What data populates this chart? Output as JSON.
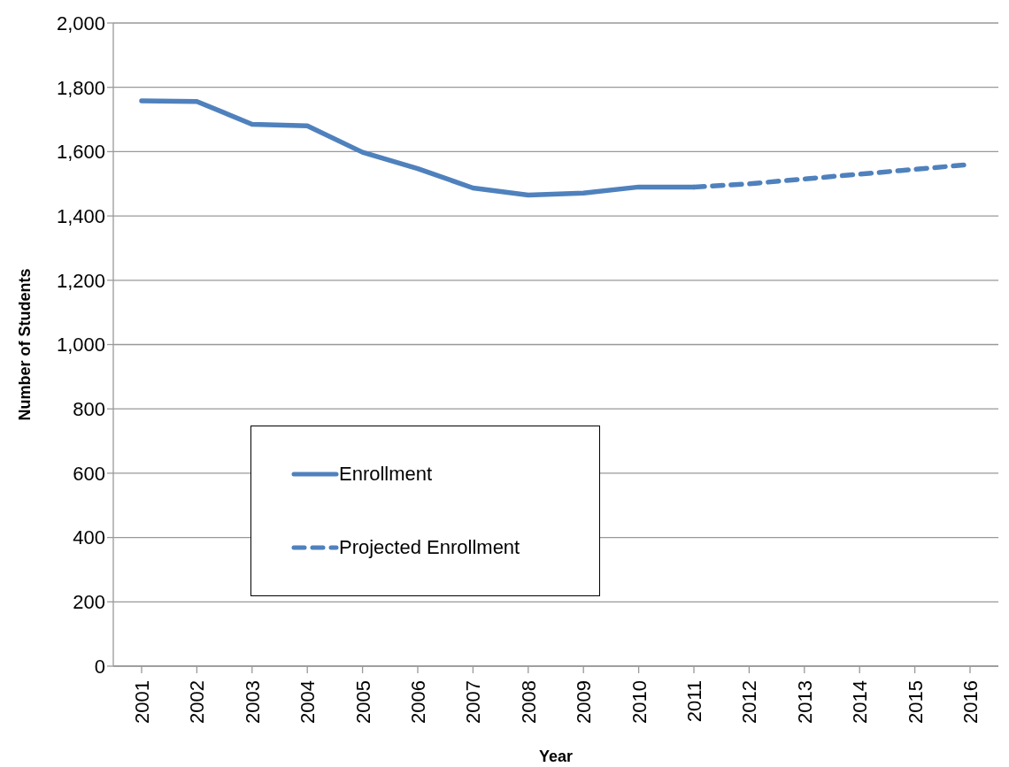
{
  "chart_data": {
    "type": "line",
    "xlabel": "Year",
    "ylabel": "Number of Students",
    "categories": [
      "2001",
      "2002",
      "2003",
      "2004",
      "2005",
      "2006",
      "2007",
      "2008",
      "2009",
      "2010",
      "2011",
      "2012",
      "2013",
      "2014",
      "2015",
      "2016"
    ],
    "series": [
      {
        "name": "Enrollment",
        "color": "#4f81bd",
        "line_style": "solid",
        "values": [
          1758,
          1756,
          1685,
          1680,
          1598,
          1547,
          1487,
          1465,
          1471,
          1490,
          1490,
          null,
          null,
          null,
          null,
          null
        ]
      },
      {
        "name": "Projected Enrollment",
        "color": "#4f81bd",
        "line_style": "dashed",
        "values": [
          null,
          null,
          null,
          null,
          null,
          null,
          null,
          null,
          null,
          null,
          1490,
          1500,
          1515,
          1530,
          1545,
          1560
        ]
      }
    ],
    "ylim": [
      0,
      2000
    ],
    "yticks": [
      0,
      200,
      400,
      600,
      800,
      {
        "value": 1000,
        "label": "1,000"
      },
      {
        "value": 1200,
        "label": "1,200"
      },
      {
        "value": 1400,
        "label": "1,400"
      },
      {
        "value": 1600,
        "label": "1,600"
      },
      {
        "value": 1800,
        "label": "1,800"
      },
      {
        "value": 2000,
        "label": "2,000"
      }
    ],
    "grid": "y",
    "legend": "bottom left",
    "marker": "none"
  }
}
